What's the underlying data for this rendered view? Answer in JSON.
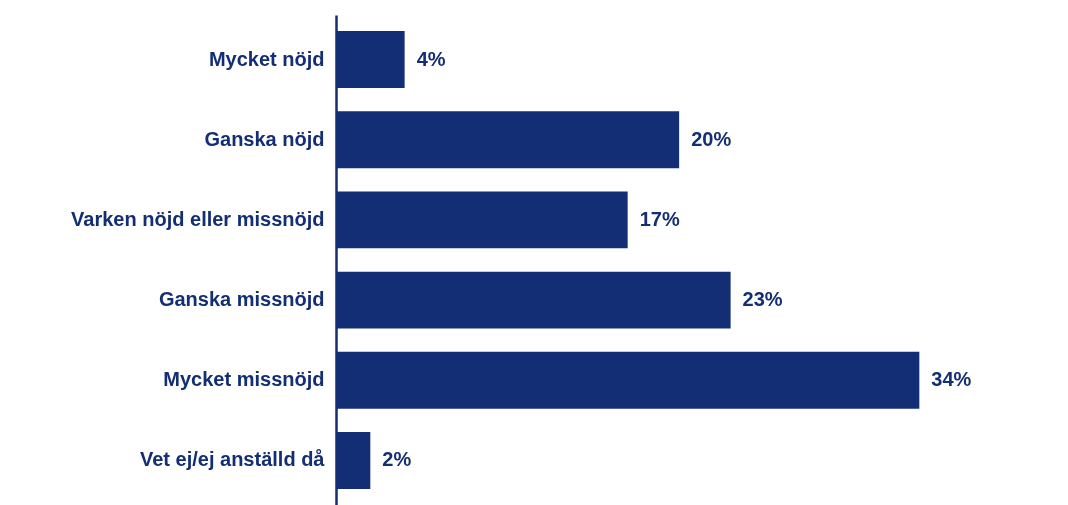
{
  "chart_data": {
    "type": "bar",
    "orientation": "horizontal",
    "categories": [
      "Mycket nöjd",
      "Ganska nöjd",
      "Varken nöjd eller missnöjd",
      "Ganska missnöjd",
      "Mycket missnöjd",
      "Vet ej/ej anställd då"
    ],
    "values": [
      4,
      20,
      17,
      23,
      34,
      2
    ],
    "value_labels": [
      "4%",
      "20%",
      "17%",
      "23%",
      "34%",
      "2%"
    ],
    "color": "#132e75"
  }
}
